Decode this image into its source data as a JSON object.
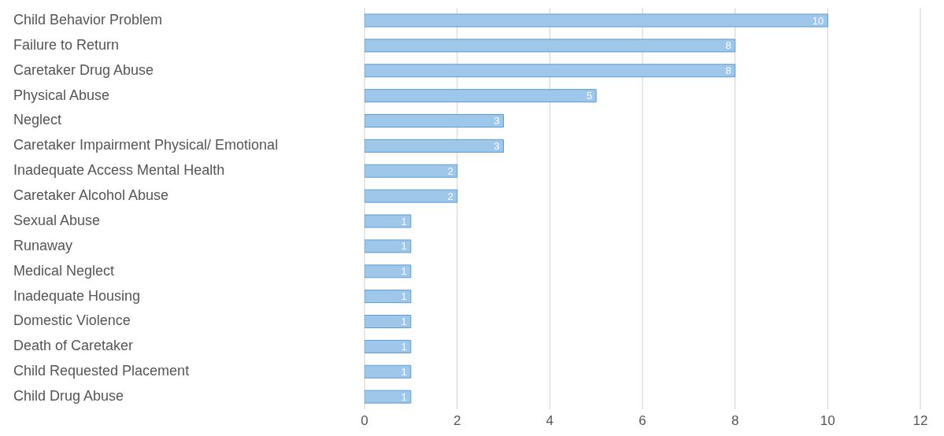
{
  "chart_data": {
    "type": "bar",
    "orientation": "horizontal",
    "categories": [
      "Child Behavior Problem",
      "Failure to Return",
      "Caretaker Drug Abuse",
      "Physical Abuse",
      "Neglect",
      "Caretaker Impairment Physical/ Emotional",
      "Inadequate Access Mental Health",
      "Caretaker Alcohol Abuse",
      "Sexual Abuse",
      "Runaway",
      "Medical Neglect",
      "Inadequate Housing",
      "Domestic Violence",
      "Death of Caretaker",
      "Child Requested Placement",
      "Child Drug Abuse"
    ],
    "values": [
      10,
      8,
      8,
      5,
      3,
      3,
      2,
      2,
      1,
      1,
      1,
      1,
      1,
      1,
      1,
      1
    ],
    "color": "#9fc7ea",
    "xlim": [
      0,
      12
    ],
    "xticks": [
      0,
      2,
      4,
      6,
      8,
      10,
      12
    ],
    "grid": "x",
    "data_labels": true
  }
}
